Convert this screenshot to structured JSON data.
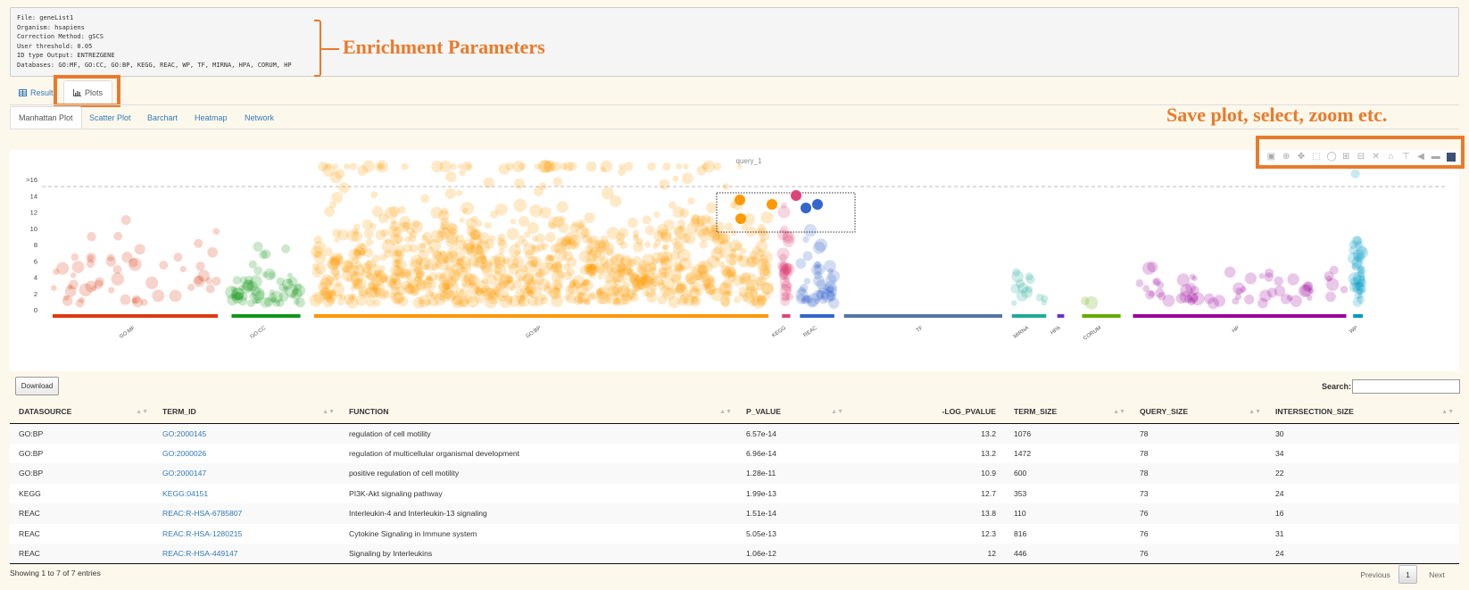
{
  "params": {
    "lines": [
      "File: geneList1",
      "Organism: hsapiens",
      "Correction Method: gSCS",
      "User threshold: 0.05",
      "ID type Output: ENTREZGENE",
      "Databases: GO:MF, GO:CC, GO:BP, KEGG, REAC, WP, TF, MIRNA, HPA, CORUM, HP"
    ]
  },
  "annotations": {
    "enrichment": "Enrichment Parameters",
    "toolbar": "Save plot, select, zoom etc."
  },
  "tabs": {
    "results": "Results",
    "plots": "Plots",
    "results_icon": "table-icon",
    "plots_icon": "bar-chart-icon"
  },
  "subtabs": [
    "Manhattan Plot",
    "Scatter Plot",
    "Barchart",
    "Heatmap",
    "Network"
  ],
  "chart_data": {
    "type": "scatter",
    "title": "query_1",
    "xlabel": "",
    "ylabel": "",
    "ylim": [
      0,
      17
    ],
    "y_ticks": [
      "0",
      "2",
      "4",
      "6",
      "8",
      "10",
      "12",
      "14",
      ">16"
    ],
    "y_cap_line": 16,
    "grid": false,
    "legend": "none",
    "sources": [
      {
        "name": "GO:MF",
        "color": "#dc3912",
        "x_range": [
          0.0,
          0.12
        ]
      },
      {
        "name": "GO:CC",
        "color": "#109618",
        "x_range": [
          0.13,
          0.18
        ]
      },
      {
        "name": "GO:BP",
        "color": "#ff9900",
        "x_range": [
          0.19,
          0.52
        ]
      },
      {
        "name": "KEGG",
        "color": "#dd4477",
        "x_range": [
          0.53,
          0.536
        ]
      },
      {
        "name": "REAC",
        "color": "#3366cc",
        "x_range": [
          0.543,
          0.568
        ]
      },
      {
        "name": "TF",
        "color": "#5574a6",
        "x_range": [
          0.575,
          0.69
        ]
      },
      {
        "name": "MIRNA",
        "color": "#22aa99",
        "x_range": [
          0.697,
          0.722
        ]
      },
      {
        "name": "HPA",
        "color": "#6633cc",
        "x_range": [
          0.73,
          0.735
        ]
      },
      {
        "name": "CORUM",
        "color": "#66aa00",
        "x_range": [
          0.748,
          0.776
        ]
      },
      {
        "name": "HP",
        "color": "#990099",
        "x_range": [
          0.785,
          0.94
        ]
      },
      {
        "name": "WP",
        "color": "#0099c6",
        "x_range": [
          0.945,
          0.952
        ]
      }
    ],
    "highlighted": [
      {
        "source": "GO:BP",
        "term": "GO:2000145",
        "neg_log_pvalue": 13.2
      },
      {
        "source": "GO:BP",
        "term": "GO:2000026",
        "neg_log_pvalue": 13.2
      },
      {
        "source": "GO:BP",
        "term": "GO:2000147",
        "neg_log_pvalue": 10.9
      },
      {
        "source": "KEGG",
        "term": "KEGG:04151",
        "neg_log_pvalue": 12.7
      },
      {
        "source": "REAC",
        "term": "REAC:R-HSA-6785807",
        "neg_log_pvalue": 13.8
      },
      {
        "source": "REAC",
        "term": "REAC:R-HSA-1280215",
        "neg_log_pvalue": 12.3
      },
      {
        "source": "REAC",
        "term": "REAC:R-HSA-449147",
        "neg_log_pvalue": 12
      }
    ]
  },
  "modebar_icons": [
    "camera-icon",
    "zoom-icon",
    "pan-icon",
    "box-select-icon",
    "lasso-select-icon",
    "zoom-in-icon",
    "zoom-out-icon",
    "autoscale-icon",
    "reset-axes-icon",
    "spike-lines-icon",
    "hover-closest-icon",
    "hover-compare-icon",
    "plotly-logo-icon"
  ],
  "download_label": "Download",
  "search_label": "Search:",
  "table": {
    "columns": [
      "DATASOURCE",
      "TERM_ID",
      "FUNCTION",
      "P_VALUE",
      "-LOG_PVALUE",
      "TERM_SIZE",
      "QUERY_SIZE",
      "INTERSECTION_SIZE"
    ],
    "rows": [
      [
        "GO:BP",
        "GO:2000145",
        "regulation of cell motility",
        "6.57e-14",
        "13.2",
        "1076",
        "78",
        "30"
      ],
      [
        "GO:BP",
        "GO:2000026",
        "regulation of multicellular organismal development",
        "6.96e-14",
        "13.2",
        "1472",
        "78",
        "34"
      ],
      [
        "GO:BP",
        "GO:2000147",
        "positive regulation of cell motility",
        "1.28e-11",
        "10.9",
        "600",
        "78",
        "22"
      ],
      [
        "KEGG",
        "KEGG:04151",
        "PI3K-Akt signaling pathway",
        "1.99e-13",
        "12.7",
        "353",
        "73",
        "24"
      ],
      [
        "REAC",
        "REAC:R-HSA-6785807",
        "Interleukin-4 and Interleukin-13 signaling",
        "1.51e-14",
        "13.8",
        "110",
        "76",
        "16"
      ],
      [
        "REAC",
        "REAC:R-HSA-1280215",
        "Cytokine Signaling in Immune system",
        "5.05e-13",
        "12.3",
        "816",
        "76",
        "31"
      ],
      [
        "REAC",
        "REAC:R-HSA-449147",
        "Signaling by Interleukins",
        "1.06e-12",
        "12",
        "446",
        "76",
        "24"
      ]
    ]
  },
  "footer": {
    "info": "Showing 1 to 7 of 7 entries",
    "previous": "Previous",
    "page": "1",
    "next": "Next"
  }
}
